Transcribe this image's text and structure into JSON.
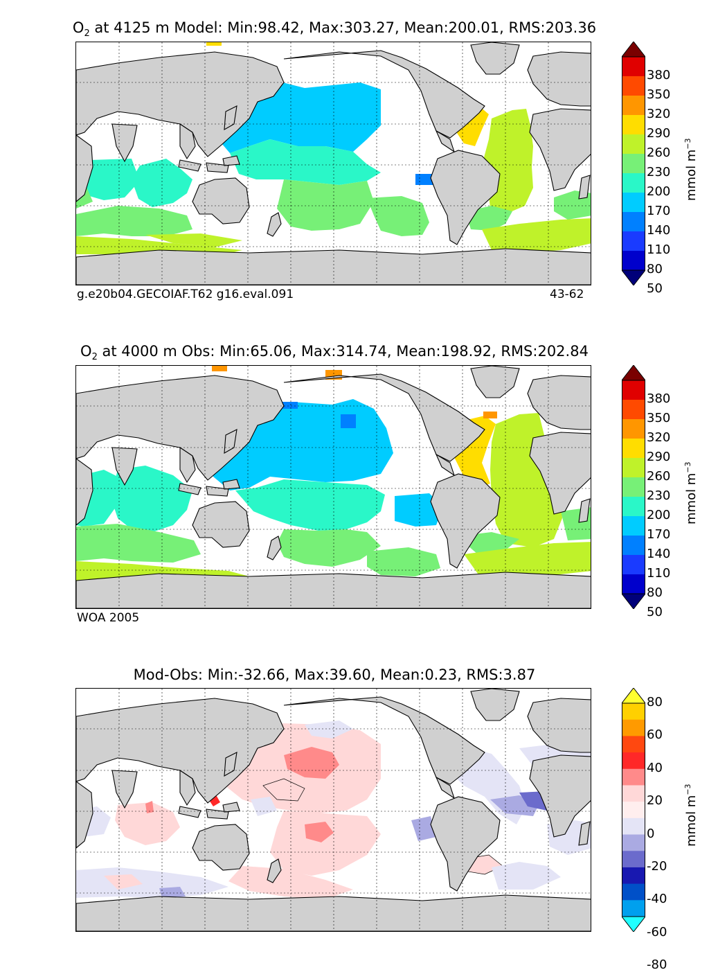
{
  "panels": [
    {
      "title_species": "O",
      "title_subscript": "2",
      "title_rest": "  at 4125 m Model: Min:98.42, Max:303.27, Mean:200.01, RMS:203.36",
      "left_note": "g.e20b04.GECOIAF.T62 g16.eval.091",
      "right_note": "43-62"
    },
    {
      "title_species": "O",
      "title_subscript": "2",
      "title_rest": "  at 4000 m Obs: Min:65.06, Max:314.74, Mean:198.92, RMS:202.84",
      "left_note": "WOA 2005",
      "right_note": ""
    },
    {
      "title_species": "",
      "title_subscript": "",
      "title_rest": "Mod-Obs: Min:-32.66, Max:39.60, Mean:0.23, RMS:3.87",
      "left_note": "",
      "right_note": ""
    }
  ],
  "colorbars": {
    "absolute": {
      "labels": [
        "380",
        "350",
        "320",
        "290",
        "260",
        "230",
        "200",
        "170",
        "140",
        "110",
        "80",
        "50"
      ],
      "colors": [
        "#7a0000",
        "#e00000",
        "#ff4a00",
        "#ff9600",
        "#ffdd00",
        "#bff22a",
        "#77f077",
        "#2af7c8",
        "#00ccff",
        "#0080ff",
        "#1a3bff",
        "#0000cc",
        "#00007a"
      ],
      "units_main": "mmol m",
      "units_sup": "−3"
    },
    "difference": {
      "labels": [
        "80",
        "60",
        "40",
        "20",
        "0",
        "-20",
        "-40",
        "-60",
        "-80"
      ],
      "colors": [
        "#ffff30",
        "#ffd000",
        "#ff9a00",
        "#ff4810",
        "#ff2828",
        "#ff8a8a",
        "#ffd8d8",
        "#ffeeee",
        "#e4e4f6",
        "#aaaae2",
        "#6b6bcc",
        "#1818b0",
        "#0050c8",
        "#00a0ee",
        "#20ffff"
      ],
      "units_main": "mmol m",
      "units_sup": "−3"
    }
  }
}
